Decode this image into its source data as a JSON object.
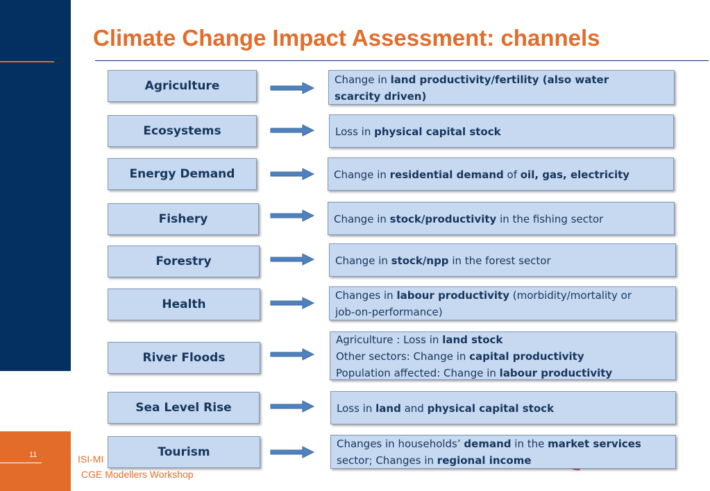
{
  "slide": {
    "title": "Climate Change Impact Assessment: channels",
    "page_number": "11",
    "footer_line1": "ISI-MI",
    "footer_line2": "CGE Modellers Workshop"
  },
  "colors": {
    "navy": "#033060",
    "accent_orange": "#e36c2a",
    "box_fill": "#c6d9f1",
    "box_text": "#17365d",
    "arrow_fill": "#4f81bd"
  },
  "channels": [
    {
      "sector": "Agriculture",
      "impact": [
        [
          {
            "t": "Change in ",
            "b": false
          },
          {
            "t": "land productivity/fertility (also water",
            "b": true
          }
        ],
        [
          {
            "t": "scarcity driven)",
            "b": true
          }
        ]
      ]
    },
    {
      "sector": "Ecosystems",
      "impact": [
        [
          {
            "t": "Loss in ",
            "b": false
          },
          {
            "t": "physical capital stock",
            "b": true
          }
        ]
      ]
    },
    {
      "sector": "Energy Demand",
      "impact": [
        [
          {
            "t": "Change in ",
            "b": false
          },
          {
            "t": "residential demand",
            "b": true
          },
          {
            "t": " of ",
            "b": false
          },
          {
            "t": "oil, gas, electricity",
            "b": true
          }
        ]
      ]
    },
    {
      "sector": "Fishery",
      "impact": [
        [
          {
            "t": "Change in ",
            "b": false
          },
          {
            "t": "stock/productivity",
            "b": true
          },
          {
            "t": " in the fishing sector",
            "b": false
          }
        ]
      ]
    },
    {
      "sector": "Forestry",
      "impact": [
        [
          {
            "t": "Change in ",
            "b": false
          },
          {
            "t": "stock/npp",
            "b": true
          },
          {
            "t": " in the forest sector",
            "b": false
          }
        ]
      ]
    },
    {
      "sector": "Health",
      "impact": [
        [
          {
            "t": "Changes in ",
            "b": false
          },
          {
            "t": "labour productivity",
            "b": true
          },
          {
            "t": " (morbidity/mortality or",
            "b": false
          }
        ],
        [
          {
            "t": "job-on-performance)",
            "b": false
          }
        ]
      ]
    },
    {
      "sector": "River Floods",
      "impact": [
        [
          {
            "t": "Agriculture : Loss in ",
            "b": false
          },
          {
            "t": "land stock",
            "b": true
          }
        ],
        [
          {
            "t": "Other sectors: Change in ",
            "b": false
          },
          {
            "t": "capital productivity",
            "b": true
          }
        ],
        [
          {
            "t": "Population affected: Change in ",
            "b": false
          },
          {
            "t": "labour productivity",
            "b": true
          }
        ]
      ]
    },
    {
      "sector": "Sea Level Rise",
      "impact": [
        [
          {
            "t": "Loss in ",
            "b": false
          },
          {
            "t": "land",
            "b": true
          },
          {
            "t": " and ",
            "b": false
          },
          {
            "t": "physical capital stock",
            "b": true
          }
        ]
      ]
    },
    {
      "sector": "Tourism",
      "impact": [
        [
          {
            "t": "Changes in households’ ",
            "b": false
          },
          {
            "t": "demand",
            "b": true
          },
          {
            "t": " in the ",
            "b": false
          },
          {
            "t": "market services",
            "b": true
          }
        ],
        [
          {
            "t": "sector; Changes in ",
            "b": false
          },
          {
            "t": "regional income",
            "b": true
          }
        ]
      ]
    }
  ]
}
